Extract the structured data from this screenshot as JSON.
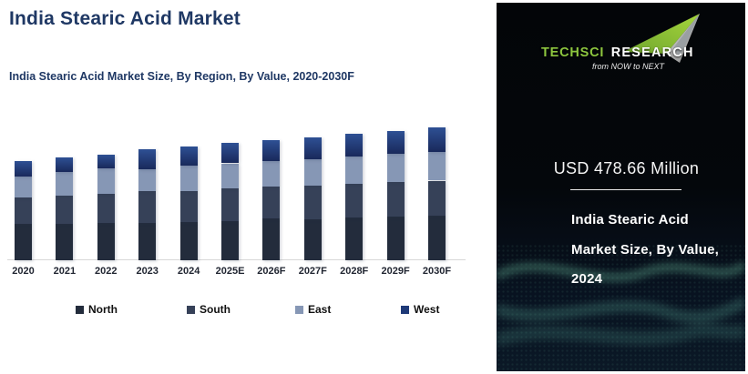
{
  "header": {
    "title": "India Stearic Acid Market",
    "subtitle": "India Stearic Acid Market Size, By Region, By Value, 2020-2030F",
    "title_color": "#1F3864"
  },
  "chart_data": {
    "type": "bar",
    "stacked": true,
    "title": "India Stearic Acid Market Size, By Region, By Value, 2020-2030F",
    "unit": "USD Million",
    "categories": [
      "2020",
      "2021",
      "2022",
      "2023",
      "2024",
      "2025E",
      "2026F",
      "2027F",
      "2028F",
      "2029F",
      "2030F"
    ],
    "series": [
      {
        "name": "North",
        "color": "#232C3C",
        "values": [
          153,
          154,
          157,
          157,
          161,
          163,
          176,
          172,
          180,
          183,
          186
        ]
      },
      {
        "name": "South",
        "color": "#364158",
        "values": [
          112,
          118,
          124,
          134,
          130,
          138,
          134,
          142,
          143,
          147,
          149
        ]
      },
      {
        "name": "East",
        "color": "#8697B5",
        "values": [
          87,
          98,
          106,
          92,
          108,
          107,
          106,
          111,
          113,
          117,
          121
        ]
      },
      {
        "name": "West",
        "color": "#1F3A78",
        "color_top": "#2E5094",
        "color_bottom": "#19295B",
        "values": [
          64,
          61,
          57,
          83,
          79.66,
          87,
          89,
          93,
          96,
          97,
          102
        ]
      }
    ],
    "labeled_point": {
      "category": "2024",
      "total": 478.66
    },
    "ylim": [
      0,
      600
    ],
    "grid": false,
    "legend_position": "bottom",
    "axis_line_color": "#D8D8D8"
  },
  "brand_panel": {
    "background": "#04070B",
    "accent_green": "#8DC63F",
    "wave_teal": "#3E8C78",
    "logo": {
      "brand_part1": "TechSci",
      "brand_part2": "Research",
      "tagline": "from NOW to NEXT"
    },
    "highlight_value": "USD 478.66 Million",
    "caption_lines": [
      "India Stearic Acid",
      "Market Size, By Value,",
      "2024"
    ]
  }
}
